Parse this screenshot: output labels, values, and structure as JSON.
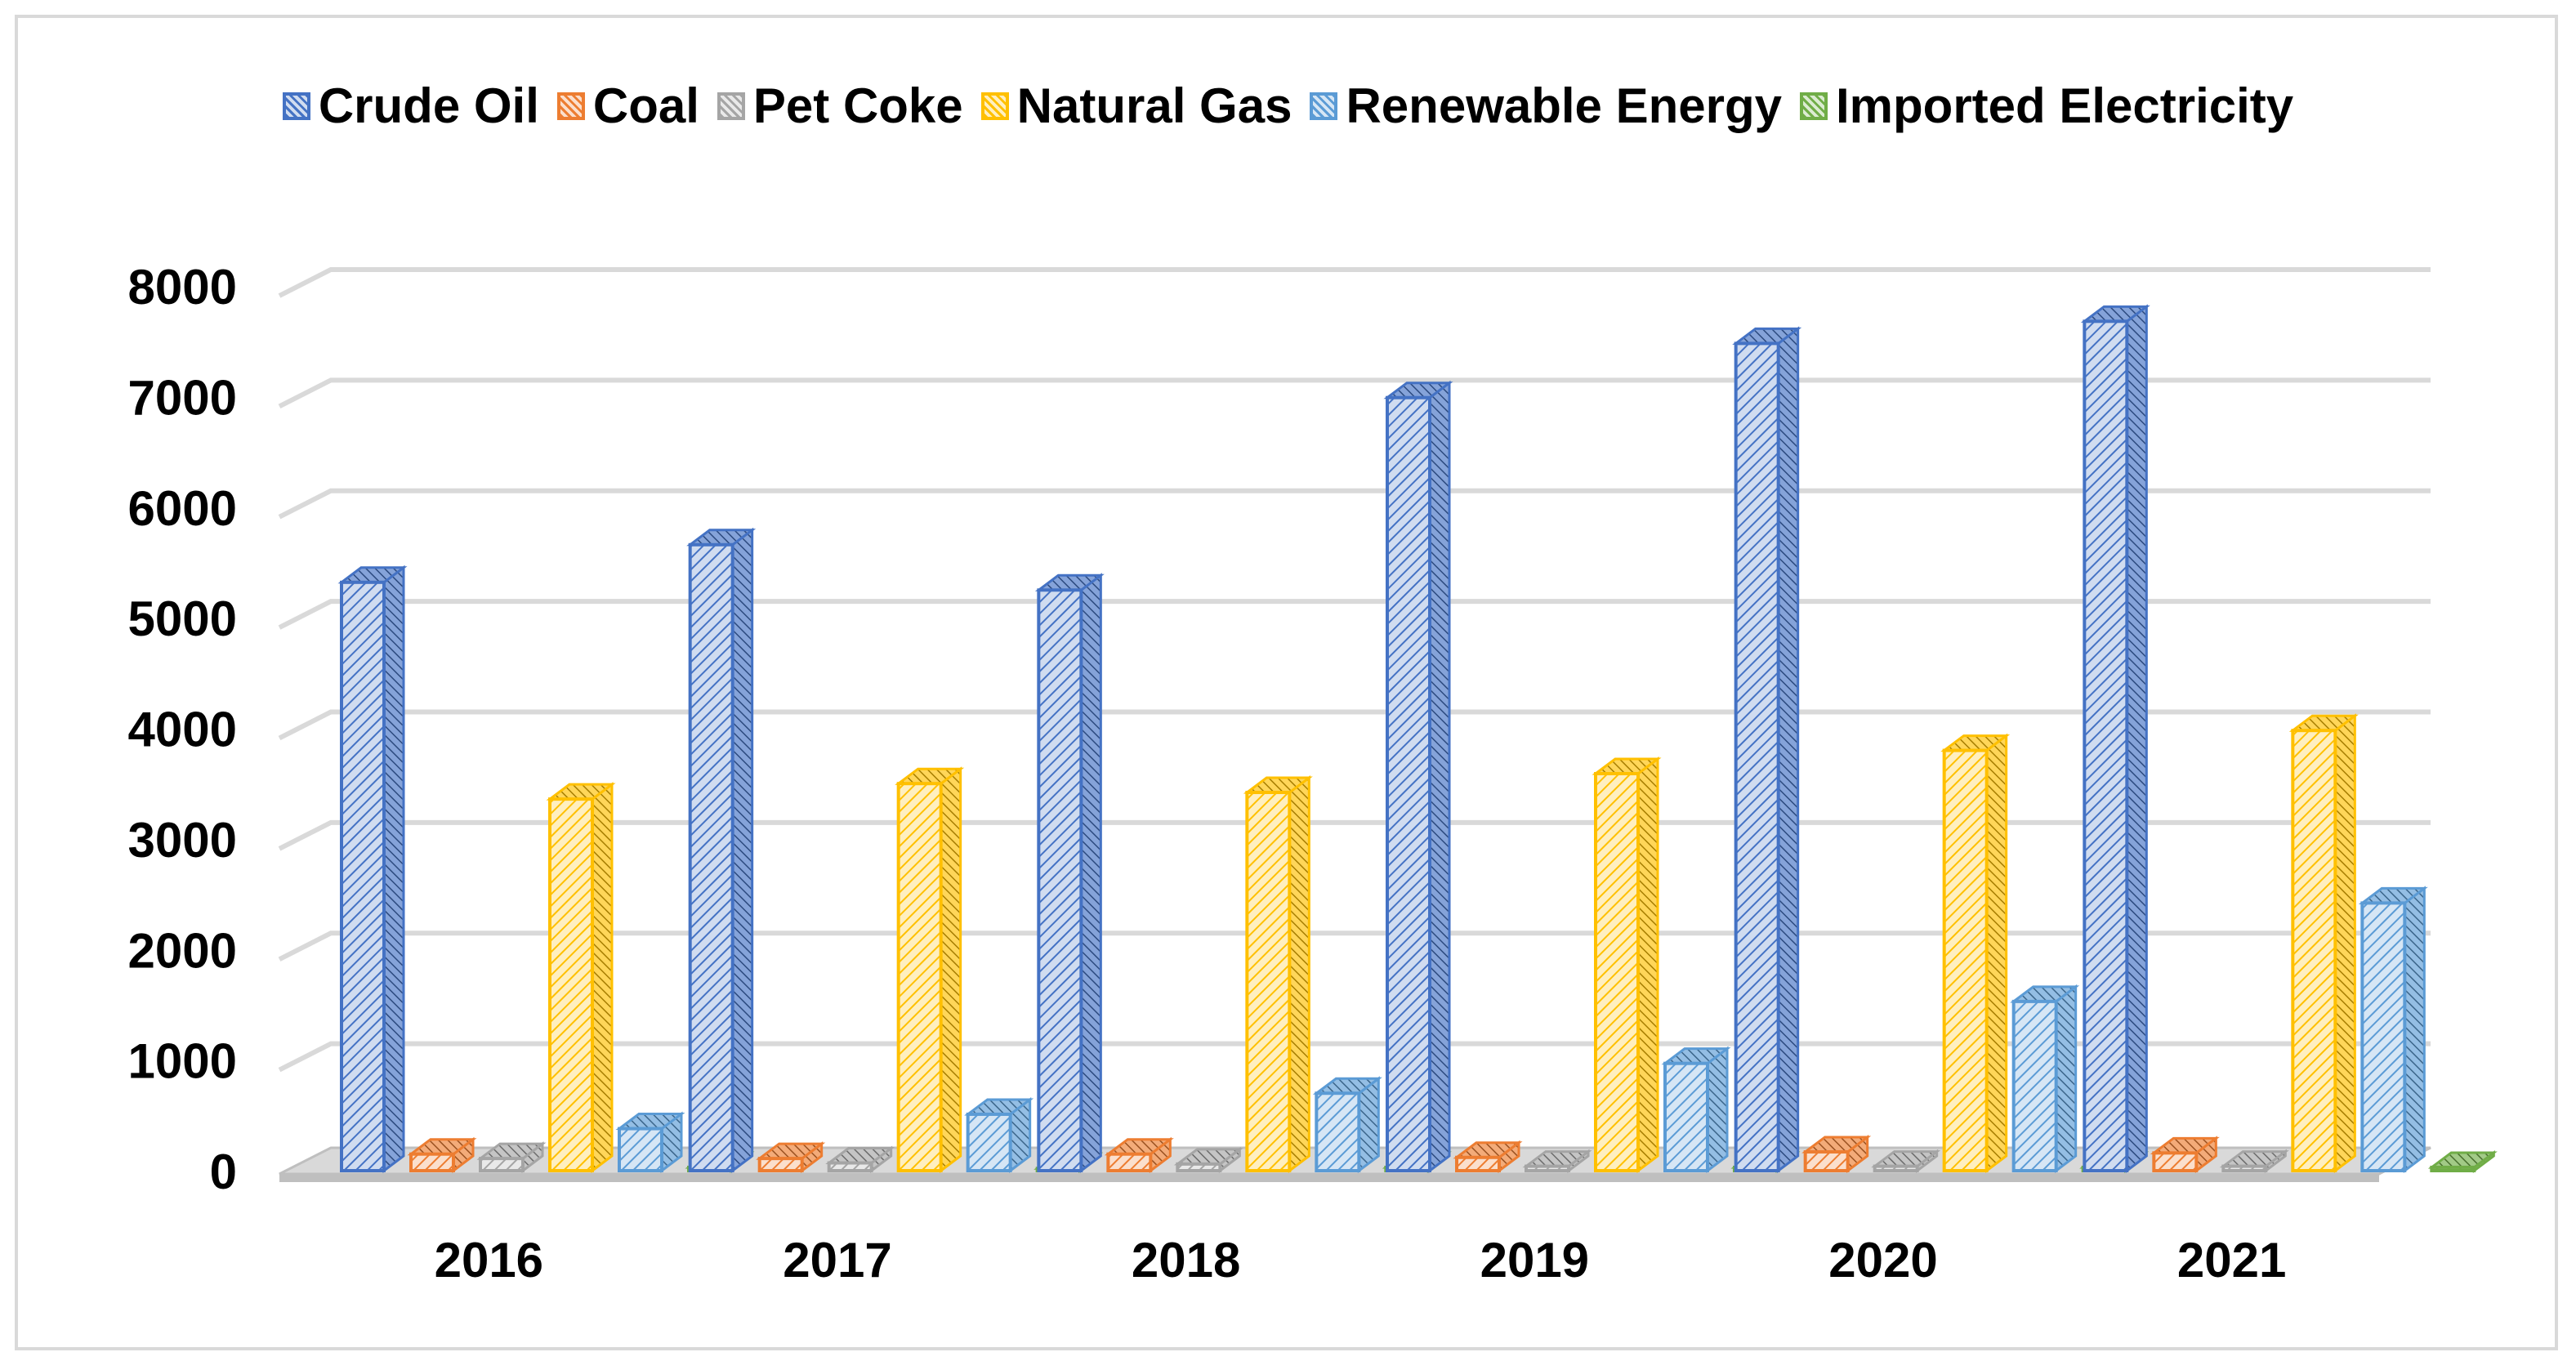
{
  "chart_data": {
    "type": "bar",
    "title": "",
    "xlabel": "",
    "ylabel": "",
    "ylim": [
      0,
      8000
    ],
    "yticks": [
      0,
      1000,
      2000,
      3000,
      4000,
      5000,
      6000,
      7000,
      8000
    ],
    "grid": true,
    "legend_position": "top",
    "categories": [
      "2016",
      "2017",
      "2018",
      "2019",
      "2020",
      "2021"
    ],
    "series": [
      {
        "name": "Crude Oil",
        "color": "#4472c4",
        "values": [
          5320,
          5660,
          5250,
          6990,
          7480,
          7680
        ]
      },
      {
        "name": "Coal",
        "color": "#ed7d31",
        "values": [
          150,
          110,
          150,
          120,
          170,
          160
        ]
      },
      {
        "name": "Pet Coke",
        "color": "#a5a5a5",
        "values": [
          110,
          70,
          60,
          40,
          40,
          40
        ]
      },
      {
        "name": "Natural Gas",
        "color": "#ffc000",
        "values": [
          3360,
          3500,
          3420,
          3590,
          3800,
          3980
        ]
      },
      {
        "name": "Renewable Energy",
        "color": "#5b9bd5",
        "values": [
          380,
          510,
          700,
          970,
          1530,
          2420
        ]
      },
      {
        "name": "Imported Electricity",
        "color": "#70ad47",
        "values": [
          30,
          20,
          30,
          30,
          30,
          30
        ]
      }
    ]
  }
}
